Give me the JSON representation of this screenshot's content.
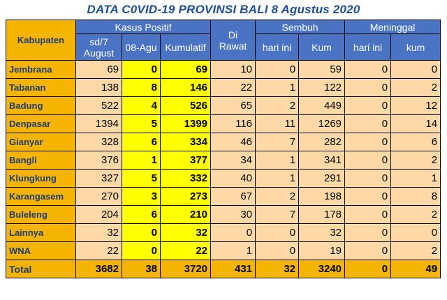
{
  "title": "DATA C0VID-19 PROVINSI BALI 8 Agustus 2020",
  "headers": {
    "kabupaten": "Kabupaten",
    "kasus_positif": "Kasus Positif",
    "sd7": "sd/7 August",
    "agu08": "08-Agu",
    "kumulatif": "Kumulatif",
    "di_rawat": "Di Rawat",
    "sembuh": "Sembuh",
    "sembuh_hari": "hari ini",
    "sembuh_kum": "Kum",
    "meninggal": "Meninggal",
    "meninggal_hari": "hari ini",
    "meninggal_kum": "kum"
  },
  "rows": [
    {
      "name": "Jembrana",
      "sd7": "69",
      "agu08": "0",
      "kum": "69",
      "rawat": "10",
      "sembuh_hari": "0",
      "sembuh_kum": "59",
      "men_hari": "0",
      "men_kum": "0"
    },
    {
      "name": "Tabanan",
      "sd7": "138",
      "agu08": "8",
      "kum": "146",
      "rawat": "22",
      "sembuh_hari": "1",
      "sembuh_kum": "122",
      "men_hari": "0",
      "men_kum": "2"
    },
    {
      "name": "Badung",
      "sd7": "522",
      "agu08": "4",
      "kum": "526",
      "rawat": "65",
      "sembuh_hari": "2",
      "sembuh_kum": "449",
      "men_hari": "0",
      "men_kum": "12"
    },
    {
      "name": "Denpasar",
      "sd7": "1394",
      "agu08": "5",
      "kum": "1399",
      "rawat": "116",
      "sembuh_hari": "11",
      "sembuh_kum": "1269",
      "men_hari": "0",
      "men_kum": "14"
    },
    {
      "name": "Gianyar",
      "sd7": "328",
      "agu08": "6",
      "kum": "334",
      "rawat": "46",
      "sembuh_hari": "7",
      "sembuh_kum": "282",
      "men_hari": "0",
      "men_kum": "6"
    },
    {
      "name": "Bangli",
      "sd7": "376",
      "agu08": "1",
      "kum": "377",
      "rawat": "34",
      "sembuh_hari": "1",
      "sembuh_kum": "341",
      "men_hari": "0",
      "men_kum": "2"
    },
    {
      "name": "Klungkung",
      "sd7": "327",
      "agu08": "5",
      "kum": "332",
      "rawat": "40",
      "sembuh_hari": "1",
      "sembuh_kum": "291",
      "men_hari": "0",
      "men_kum": "1"
    },
    {
      "name": "Karangasem",
      "sd7": "270",
      "agu08": "3",
      "kum": "273",
      "rawat": "67",
      "sembuh_hari": "2",
      "sembuh_kum": "198",
      "men_hari": "0",
      "men_kum": "8"
    },
    {
      "name": "Buleleng",
      "sd7": "204",
      "agu08": "6",
      "kum": "210",
      "rawat": "30",
      "sembuh_hari": "7",
      "sembuh_kum": "178",
      "men_hari": "0",
      "men_kum": "2"
    },
    {
      "name": "Lainnya",
      "sd7": "32",
      "agu08": "0",
      "kum": "32",
      "rawat": "0",
      "sembuh_hari": "0",
      "sembuh_kum": "32",
      "men_hari": "0",
      "men_kum": "0"
    },
    {
      "name": "WNA",
      "sd7": "22",
      "agu08": "0",
      "kum": "22",
      "rawat": "1",
      "sembuh_hari": "0",
      "sembuh_kum": "19",
      "men_hari": "0",
      "men_kum": "2"
    }
  ],
  "total": {
    "name": "Total",
    "sd7": "3682",
    "agu08": "38",
    "kum": "3720",
    "rawat": "431",
    "sembuh_hari": "32",
    "sembuh_kum": "3240",
    "men_hari": "0",
    "men_kum": "49"
  },
  "colors": {
    "header_blue": "#4a73c4",
    "kabupaten_orange": "#f5b400",
    "cell_peach": "#fcd9a6",
    "highlight_yellow": "#ffff00",
    "title_blue": "#1f4e96"
  }
}
